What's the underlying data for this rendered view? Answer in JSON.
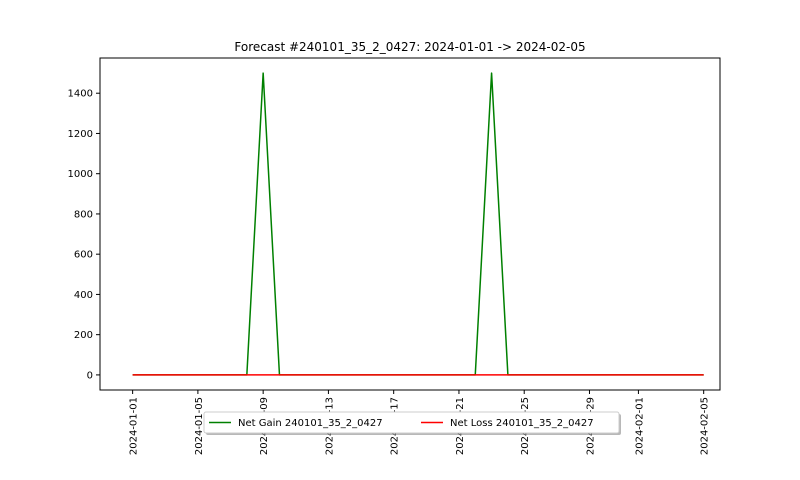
{
  "chart_data": {
    "type": "line",
    "title": "Forecast #240101_35_2_0427: 2024-01-01 -> 2024-02-05",
    "xlabel": "",
    "ylabel": "",
    "x_type": "date",
    "xlim": [
      "2023-12-30",
      "2024-02-06"
    ],
    "ylim": [
      -75,
      1575
    ],
    "x_ticks": [
      "2024-01-01",
      "2024-01-05",
      "2024-01-09",
      "2024-01-13",
      "2024-01-17",
      "2024-01-21",
      "2024-01-25",
      "2024-01-29",
      "2024-02-01",
      "2024-02-05"
    ],
    "y_ticks": [
      0,
      200,
      400,
      600,
      800,
      1000,
      1200,
      1400
    ],
    "grid": false,
    "legend_position": "bottom-center",
    "series": [
      {
        "name": "Net Gain 240101_35_2_0427",
        "color": "#008000",
        "points": [
          {
            "x": "2024-01-01",
            "y": 0
          },
          {
            "x": "2024-01-08",
            "y": 0
          },
          {
            "x": "2024-01-09",
            "y": 1500
          },
          {
            "x": "2024-01-10",
            "y": 0
          },
          {
            "x": "2024-01-22",
            "y": 0
          },
          {
            "x": "2024-01-23",
            "y": 1500
          },
          {
            "x": "2024-01-24",
            "y": 0
          },
          {
            "x": "2024-02-05",
            "y": 0
          }
        ]
      },
      {
        "name": "Net Loss 240101_35_2_0427",
        "color": "#ff0000",
        "points": [
          {
            "x": "2024-01-01",
            "y": 0
          },
          {
            "x": "2024-02-05",
            "y": 0
          }
        ]
      }
    ]
  }
}
